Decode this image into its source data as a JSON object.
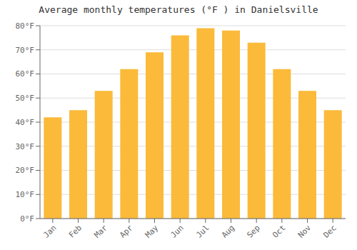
{
  "chart_data": {
    "type": "bar",
    "title": "Average monthly temperatures (°F ) in Danielsville",
    "categories": [
      "Jan",
      "Feb",
      "Mar",
      "Apr",
      "May",
      "Jun",
      "Jul",
      "Aug",
      "Sep",
      "Oct",
      "Nov",
      "Dec"
    ],
    "values": [
      42,
      45,
      53,
      62,
      69,
      76,
      79,
      78,
      73,
      62,
      53,
      45
    ],
    "color": "#FBBA3A",
    "ylim": [
      0,
      80
    ],
    "yticks": [
      {
        "value": 0,
        "label": "0°F"
      },
      {
        "value": 10,
        "label": "10°F"
      },
      {
        "value": 20,
        "label": "20°F"
      },
      {
        "value": 30,
        "label": "30°F"
      },
      {
        "value": 40,
        "label": "40°F"
      },
      {
        "value": 50,
        "label": "50°F"
      },
      {
        "value": 60,
        "label": "60°F"
      },
      {
        "value": 70,
        "label": "70°F"
      },
      {
        "value": 80,
        "label": "80°F"
      }
    ],
    "grid": true
  }
}
